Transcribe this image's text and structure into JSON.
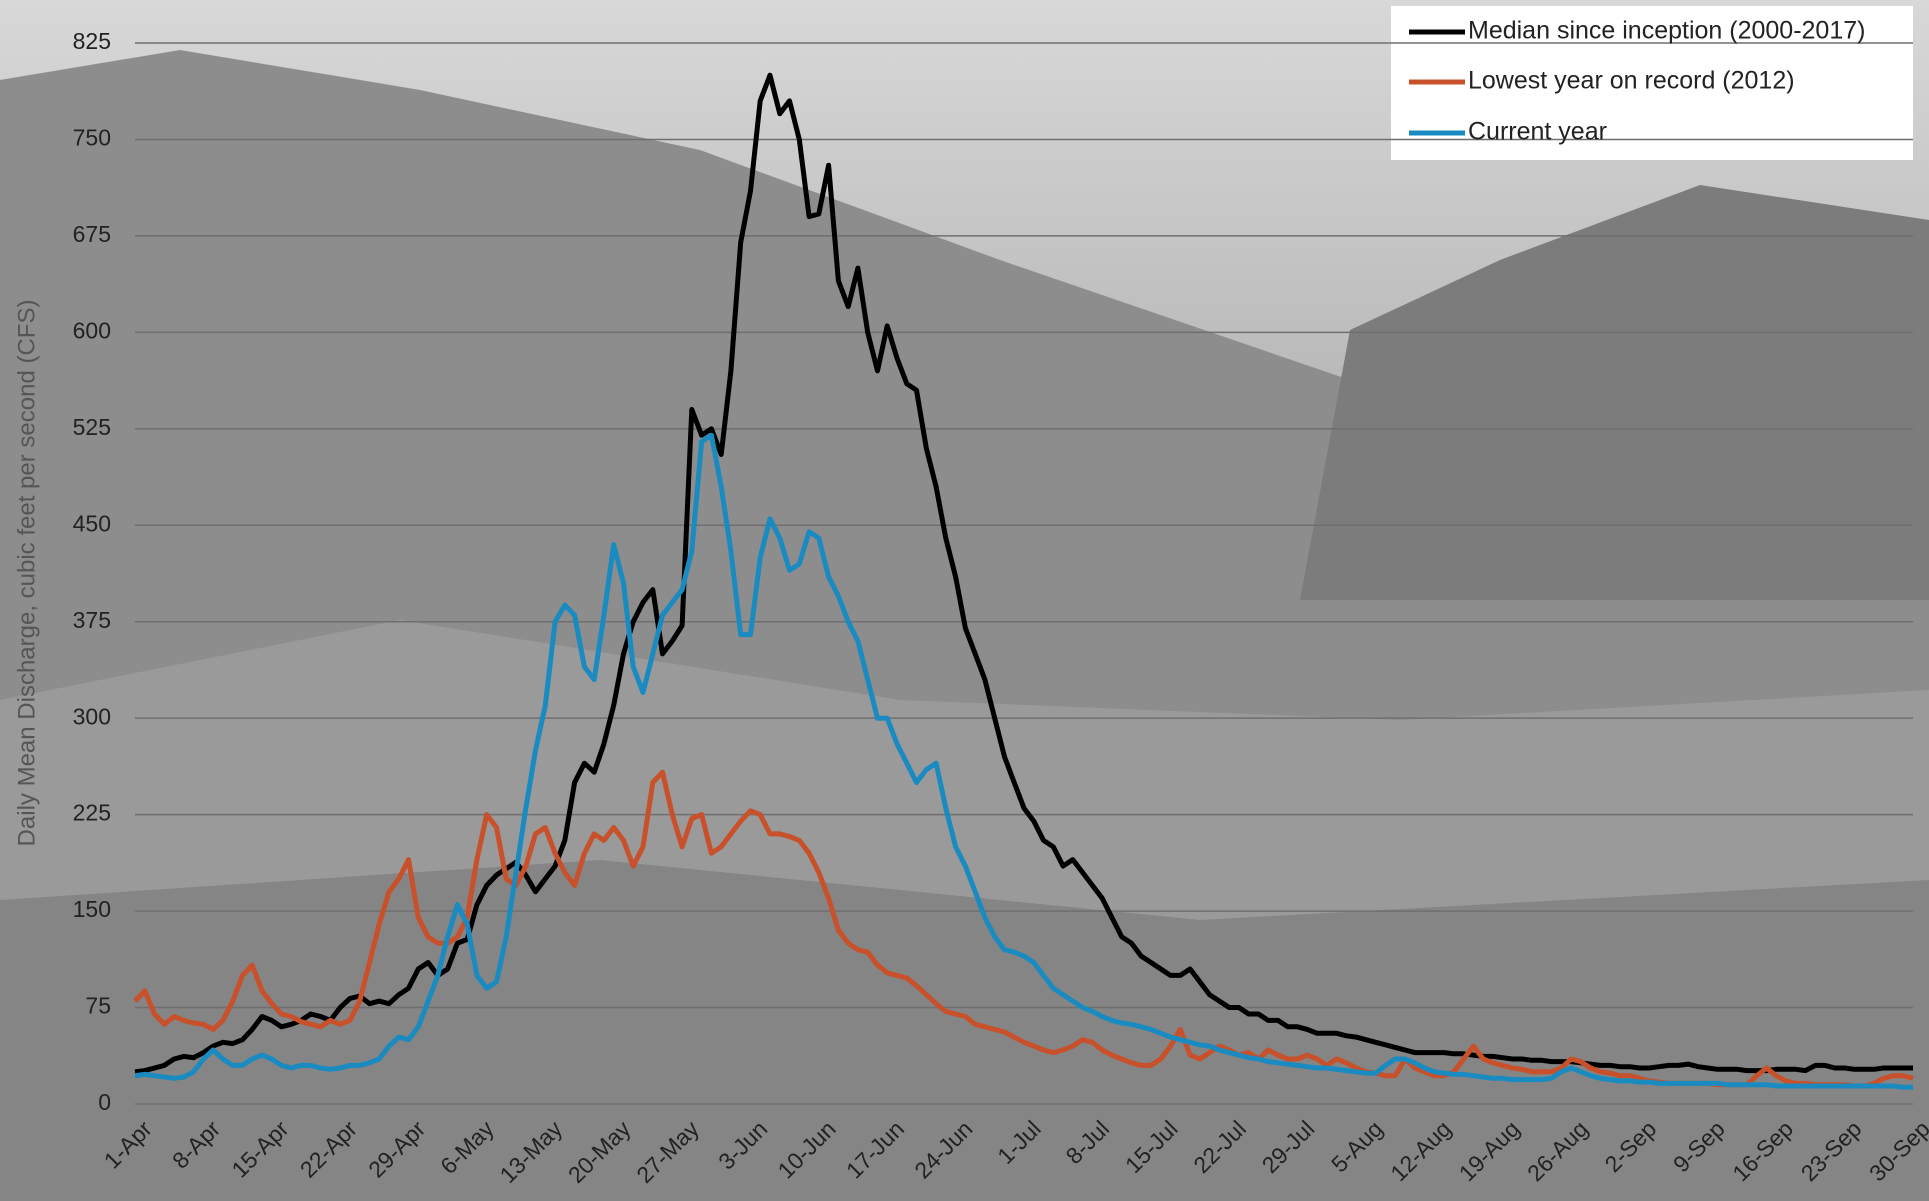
{
  "chart_data": {
    "type": "line",
    "y_label": "Daily Mean Discharge, cubic feet per second (CFS)",
    "ylim": [
      0,
      825
    ],
    "yticks": [
      0,
      75,
      150,
      225,
      300,
      375,
      450,
      525,
      600,
      675,
      750,
      825
    ],
    "grid": true,
    "legend": "top-right",
    "categories": [
      "1-Apr",
      null,
      null,
      null,
      null,
      null,
      null,
      "8-Apr",
      null,
      null,
      null,
      null,
      null,
      null,
      "15-Apr",
      null,
      null,
      null,
      null,
      null,
      null,
      "22-Apr",
      null,
      null,
      null,
      null,
      null,
      null,
      "29-Apr",
      null,
      null,
      null,
      null,
      null,
      null,
      "6-May",
      null,
      null,
      null,
      null,
      null,
      null,
      "13-May",
      null,
      null,
      null,
      null,
      null,
      null,
      "20-May",
      null,
      null,
      null,
      null,
      null,
      null,
      "27-May",
      null,
      null,
      null,
      null,
      null,
      null,
      "3-Jun",
      null,
      null,
      null,
      null,
      null,
      null,
      "10-Jun",
      null,
      null,
      null,
      null,
      null,
      null,
      "17-Jun",
      null,
      null,
      null,
      null,
      null,
      null,
      "24-Jun",
      null,
      null,
      null,
      null,
      null,
      null,
      "1-Jul",
      null,
      null,
      null,
      null,
      null,
      null,
      "8-Jul",
      null,
      null,
      null,
      null,
      null,
      null,
      "15-Jul",
      null,
      null,
      null,
      null,
      null,
      null,
      "22-Jul",
      null,
      null,
      null,
      null,
      null,
      null,
      "29-Jul",
      null,
      null,
      null,
      null,
      null,
      null,
      "5-Aug",
      null,
      null,
      null,
      null,
      null,
      null,
      "12-Aug",
      null,
      null,
      null,
      null,
      null,
      null,
      "19-Aug",
      null,
      null,
      null,
      null,
      null,
      null,
      "26-Aug",
      null,
      null,
      null,
      null,
      null,
      null,
      "2-Sep",
      null,
      null,
      null,
      null,
      null,
      null,
      "9-Sep",
      null,
      null,
      null,
      null,
      null,
      null,
      "16-Sep",
      null,
      null,
      null,
      null,
      null,
      null,
      "23-Sep",
      null,
      null,
      null,
      null,
      null,
      null,
      "30-Sep"
    ],
    "series": [
      {
        "name": "Median since inception (2000-2017)",
        "color": "#000000",
        "values": [
          25,
          26,
          28,
          30,
          35,
          37,
          36,
          40,
          45,
          48,
          47,
          50,
          58,
          68,
          65,
          60,
          62,
          65,
          70,
          68,
          65,
          75,
          82,
          84,
          78,
          80,
          78,
          85,
          90,
          105,
          110,
          100,
          105,
          125,
          128,
          155,
          170,
          178,
          183,
          188,
          178,
          165,
          175,
          185,
          205,
          250,
          265,
          258,
          280,
          310,
          350,
          375,
          390,
          400,
          350,
          360,
          372,
          540,
          520,
          525,
          505,
          570,
          670,
          710,
          780,
          800,
          770,
          780,
          750,
          690,
          692,
          730,
          640,
          620,
          650,
          600,
          570,
          605,
          580,
          560,
          555,
          510,
          480,
          440,
          410,
          370,
          350,
          330,
          300,
          270,
          250,
          230,
          220,
          205,
          200,
          185,
          190,
          180,
          170,
          160,
          145,
          130,
          125,
          115,
          110,
          105,
          100,
          100,
          105,
          95,
          85,
          80,
          75,
          75,
          70,
          70,
          65,
          65,
          60,
          60,
          58,
          55,
          55,
          55,
          53,
          52,
          50,
          48,
          46,
          44,
          42,
          40,
          40,
          40,
          40,
          39,
          39,
          38,
          37,
          37,
          36,
          35,
          35,
          34,
          34,
          33,
          33,
          33,
          32,
          31,
          30,
          30,
          29,
          29,
          28,
          28,
          29,
          30,
          30,
          31,
          29,
          28,
          27,
          27,
          27,
          26,
          26,
          26,
          27,
          27,
          27,
          26,
          30,
          30,
          28,
          28,
          27,
          27,
          27,
          28,
          28,
          28,
          28
        ]
      },
      {
        "name": "Lowest year on record (2012)",
        "color": "#c8502a",
        "values": [
          80,
          88,
          70,
          62,
          68,
          65,
          63,
          62,
          58,
          65,
          80,
          100,
          108,
          88,
          78,
          70,
          68,
          64,
          62,
          60,
          65,
          62,
          65,
          80,
          110,
          140,
          165,
          175,
          190,
          145,
          130,
          125,
          125,
          130,
          145,
          190,
          225,
          215,
          175,
          170,
          185,
          210,
          215,
          195,
          180,
          170,
          195,
          210,
          205,
          215,
          205,
          185,
          200,
          250,
          258,
          225,
          200,
          222,
          225,
          195,
          200,
          210,
          220,
          228,
          225,
          210,
          210,
          208,
          205,
          195,
          180,
          160,
          135,
          125,
          120,
          118,
          108,
          102,
          100,
          98,
          92,
          85,
          78,
          72,
          70,
          68,
          62,
          60,
          58,
          56,
          52,
          48,
          45,
          42,
          40,
          42,
          45,
          50,
          48,
          42,
          38,
          35,
          32,
          30,
          30,
          35,
          45,
          58,
          38,
          35,
          40,
          45,
          42,
          38,
          40,
          35,
          42,
          38,
          35,
          35,
          38,
          35,
          30,
          35,
          32,
          28,
          25,
          24,
          22,
          22,
          35,
          28,
          25,
          22,
          22,
          25,
          35,
          45,
          35,
          32,
          30,
          28,
          27,
          25,
          25,
          25,
          28,
          35,
          33,
          28,
          25,
          24,
          22,
          22,
          20,
          18,
          17,
          16,
          16,
          16,
          16,
          16,
          15,
          15,
          15,
          15,
          22,
          28,
          22,
          18,
          16,
          16,
          15,
          15,
          15,
          15,
          14,
          14,
          16,
          20,
          22,
          22,
          20
        ]
      },
      {
        "name": "Current year",
        "color": "#1a8bc0",
        "values": [
          22,
          23,
          22,
          21,
          20,
          21,
          25,
          35,
          42,
          35,
          30,
          30,
          35,
          38,
          35,
          30,
          28,
          30,
          30,
          28,
          27,
          28,
          30,
          30,
          32,
          35,
          45,
          52,
          50,
          60,
          80,
          100,
          130,
          155,
          140,
          100,
          90,
          95,
          130,
          180,
          230,
          275,
          310,
          375,
          388,
          380,
          340,
          330,
          380,
          435,
          405,
          340,
          320,
          350,
          380,
          390,
          400,
          430,
          515,
          520,
          480,
          430,
          365,
          365,
          425,
          455,
          440,
          415,
          420,
          445,
          440,
          410,
          395,
          375,
          360,
          330,
          300,
          300,
          280,
          265,
          250,
          260,
          265,
          230,
          200,
          185,
          165,
          145,
          130,
          120,
          118,
          115,
          110,
          100,
          90,
          85,
          80,
          75,
          72,
          68,
          65,
          63,
          62,
          60,
          58,
          55,
          52,
          50,
          48,
          46,
          45,
          42,
          40,
          38,
          36,
          35,
          33,
          32,
          31,
          30,
          29,
          28,
          28,
          27,
          26,
          25,
          24,
          24,
          30,
          35,
          35,
          32,
          28,
          25,
          24,
          23,
          23,
          22,
          21,
          20,
          20,
          19,
          19,
          19,
          19,
          20,
          25,
          28,
          25,
          22,
          20,
          19,
          18,
          18,
          17,
          17,
          16,
          16,
          16,
          16,
          16,
          16,
          16,
          15,
          15,
          15,
          15,
          15,
          14,
          14,
          14,
          14,
          14,
          14,
          14,
          14,
          14,
          14,
          14,
          14,
          14,
          13,
          13
        ]
      }
    ]
  }
}
